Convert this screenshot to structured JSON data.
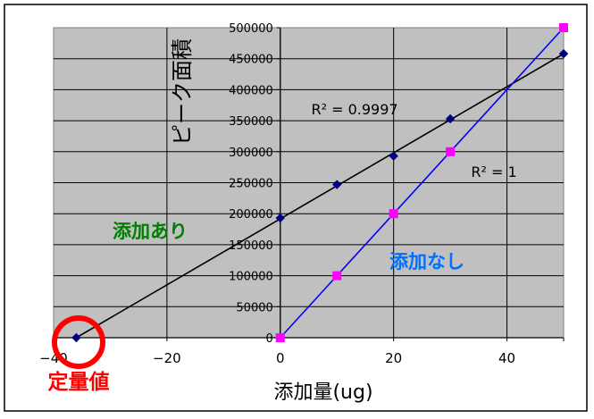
{
  "chart_data": {
    "type": "scatter",
    "xlabel": "添加量(ug)",
    "ylabel": "ピーク面積",
    "xlim": [
      -40,
      50
    ],
    "ylim": [
      0,
      500000
    ],
    "x_ticks": [
      -40,
      -20,
      0,
      20,
      40
    ],
    "x_tick_labels": [
      "−40",
      "−20",
      "0",
      "20",
      "40"
    ],
    "y_ticks": [
      0,
      50000,
      100000,
      150000,
      200000,
      250000,
      300000,
      350000,
      400000,
      450000,
      500000
    ],
    "y_tick_labels": [
      "0",
      "50000",
      "100000",
      "150000",
      "200000",
      "250000",
      "300000",
      "350000",
      "400000",
      "450000",
      "500000"
    ],
    "grid": true,
    "colors": {
      "plot_bg": "#c0c0c0",
      "series_with": "#000000",
      "series_without": "#0000ff",
      "marker_with": "#000080",
      "marker_without": "#ff00ff",
      "label_with": "#008000",
      "label_without": "#0070ff",
      "circle": "#ff0000"
    },
    "series": [
      {
        "name": "添加あり",
        "marker": "diamond",
        "x": [
          -36,
          0,
          10,
          20,
          30,
          50
        ],
        "y": [
          0,
          193000,
          247000,
          293000,
          353000,
          458000
        ],
        "trendline": {
          "x": [
            -36,
            50
          ],
          "y": [
            0,
            458000
          ]
        },
        "r2_label": "R² = 0.9997"
      },
      {
        "name": "添加なし",
        "marker": "square",
        "x": [
          0,
          10,
          20,
          30,
          50
        ],
        "y": [
          0,
          100000,
          200000,
          300000,
          500000
        ],
        "trendline": {
          "x": [
            0,
            50
          ],
          "y": [
            0,
            500000
          ]
        },
        "r2_label": "R² = 1"
      }
    ],
    "annotations": {
      "quant_label": "定量値",
      "quant_point": {
        "x": -36,
        "y": 0
      }
    }
  }
}
